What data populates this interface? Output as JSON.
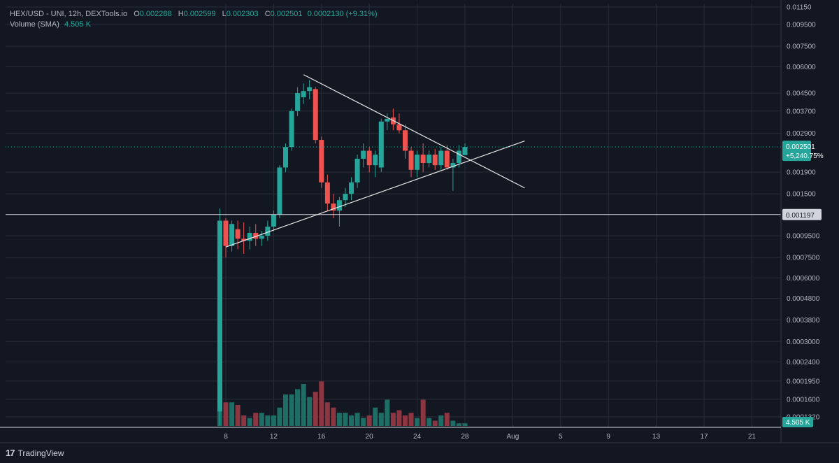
{
  "legend": {
    "symbol": "HEX/USD - UNI, 12h, DEXTools.io",
    "o_label": "O",
    "o": "0.002288",
    "h_label": "H",
    "h": "0.002599",
    "l_label": "L",
    "l": "0.002303",
    "c_label": "C",
    "c": "0.002501",
    "change": "0.0002130 (+9.31%)",
    "volume_label": "Volume (SMA)",
    "volume_value": "4.505 K"
  },
  "branding": {
    "logo": "17",
    "name": "TradingView"
  },
  "colors": {
    "up": "#26a69a",
    "down": "#ef5350",
    "up_vol": "#1f6e66",
    "down_vol": "#8c3642",
    "bg": "#131722",
    "grid": "#2a2e39"
  },
  "price_tags": {
    "last_price": "0.002501",
    "last_change": "+5,240.75%",
    "level": "0.001197",
    "volume": "4.505 K"
  },
  "chart_data": {
    "type": "candlestick",
    "scale": "log",
    "y_ticks": [
      "0.01150",
      "0.009500",
      "0.007500",
      "0.006000",
      "0.004500",
      "0.003700",
      "0.002900",
      "0.001900",
      "0.001500",
      "0.0009500",
      "0.0007500",
      "0.0006000",
      "0.0004800",
      "0.0003800",
      "0.0003000",
      "0.0002400",
      "0.0001950",
      "0.0001600",
      "0.0001320"
    ],
    "x_ticks": [
      "8",
      "12",
      "16",
      "20",
      "24",
      "28",
      "Aug",
      "5",
      "9",
      "13",
      "17",
      "21"
    ],
    "x_tick_days": [
      8,
      12,
      16,
      20,
      24,
      28,
      32,
      36,
      40,
      44,
      48,
      52
    ],
    "horizontal_level": 0.001197,
    "candles": [
      {
        "d": 7.5,
        "o": 0.00014,
        "h": 0.00128,
        "l": 0.00012,
        "c": 0.00112
      },
      {
        "d": 8.0,
        "o": 0.00112,
        "h": 0.00115,
        "l": 0.00075,
        "c": 0.00085
      },
      {
        "d": 8.5,
        "o": 0.00085,
        "h": 0.00112,
        "l": 0.0008,
        "c": 0.00108
      },
      {
        "d": 9.0,
        "o": 0.00102,
        "h": 0.00112,
        "l": 0.00082,
        "c": 0.00092
      },
      {
        "d": 9.5,
        "o": 0.00092,
        "h": 0.0011,
        "l": 0.00078,
        "c": 0.0009
      },
      {
        "d": 10.0,
        "o": 0.0009,
        "h": 0.00105,
        "l": 0.00082,
        "c": 0.00098
      },
      {
        "d": 10.5,
        "o": 0.00098,
        "h": 0.00108,
        "l": 0.00085,
        "c": 0.00092
      },
      {
        "d": 11.0,
        "o": 0.00092,
        "h": 0.001,
        "l": 0.00085,
        "c": 0.00095
      },
      {
        "d": 11.5,
        "o": 0.00095,
        "h": 0.00112,
        "l": 0.0009,
        "c": 0.00105
      },
      {
        "d": 12.0,
        "o": 0.00105,
        "h": 0.00125,
        "l": 0.001,
        "c": 0.0012
      },
      {
        "d": 12.5,
        "o": 0.0012,
        "h": 0.00205,
        "l": 0.00115,
        "c": 0.002
      },
      {
        "d": 13.0,
        "o": 0.002,
        "h": 0.0026,
        "l": 0.0019,
        "c": 0.0025
      },
      {
        "d": 13.5,
        "o": 0.0025,
        "h": 0.0038,
        "l": 0.0024,
        "c": 0.0037
      },
      {
        "d": 14.0,
        "o": 0.0037,
        "h": 0.0048,
        "l": 0.0035,
        "c": 0.0045
      },
      {
        "d": 14.5,
        "o": 0.0043,
        "h": 0.005,
        "l": 0.004,
        "c": 0.0046
      },
      {
        "d": 15.0,
        "o": 0.0046,
        "h": 0.0052,
        "l": 0.0042,
        "c": 0.0048
      },
      {
        "d": 15.5,
        "o": 0.0047,
        "h": 0.0048,
        "l": 0.0026,
        "c": 0.0027
      },
      {
        "d": 16.0,
        "o": 0.0027,
        "h": 0.0028,
        "l": 0.0016,
        "c": 0.0017
      },
      {
        "d": 16.5,
        "o": 0.0017,
        "h": 0.00185,
        "l": 0.00125,
        "c": 0.00135
      },
      {
        "d": 17.0,
        "o": 0.00135,
        "h": 0.0015,
        "l": 0.00115,
        "c": 0.00125
      },
      {
        "d": 17.5,
        "o": 0.00125,
        "h": 0.00145,
        "l": 0.00105,
        "c": 0.0014
      },
      {
        "d": 18.0,
        "o": 0.0014,
        "h": 0.0016,
        "l": 0.0013,
        "c": 0.0015
      },
      {
        "d": 18.5,
        "o": 0.0015,
        "h": 0.0018,
        "l": 0.0014,
        "c": 0.0017
      },
      {
        "d": 19.0,
        "o": 0.0017,
        "h": 0.0023,
        "l": 0.0016,
        "c": 0.0022
      },
      {
        "d": 19.5,
        "o": 0.0022,
        "h": 0.0026,
        "l": 0.002,
        "c": 0.0024
      },
      {
        "d": 20.0,
        "o": 0.0024,
        "h": 0.0025,
        "l": 0.0019,
        "c": 0.00205
      },
      {
        "d": 20.5,
        "o": 0.00205,
        "h": 0.0024,
        "l": 0.0018,
        "c": 0.0023
      },
      {
        "d": 21.0,
        "o": 0.002,
        "h": 0.0034,
        "l": 0.0019,
        "c": 0.0033
      },
      {
        "d": 21.5,
        "o": 0.0033,
        "h": 0.0036,
        "l": 0.003,
        "c": 0.0034
      },
      {
        "d": 22.0,
        "o": 0.00345,
        "h": 0.0038,
        "l": 0.003,
        "c": 0.0032
      },
      {
        "d": 22.5,
        "o": 0.0032,
        "h": 0.0036,
        "l": 0.0029,
        "c": 0.003
      },
      {
        "d": 23.0,
        "o": 0.003,
        "h": 0.0032,
        "l": 0.0022,
        "c": 0.0024
      },
      {
        "d": 23.5,
        "o": 0.0024,
        "h": 0.0025,
        "l": 0.0018,
        "c": 0.00195
      },
      {
        "d": 24.0,
        "o": 0.00195,
        "h": 0.0024,
        "l": 0.0018,
        "c": 0.0023
      },
      {
        "d": 24.5,
        "o": 0.0023,
        "h": 0.0026,
        "l": 0.0019,
        "c": 0.0021
      },
      {
        "d": 25.0,
        "o": 0.0021,
        "h": 0.0024,
        "l": 0.002,
        "c": 0.0023
      },
      {
        "d": 25.5,
        "o": 0.0023,
        "h": 0.00245,
        "l": 0.00195,
        "c": 0.00205
      },
      {
        "d": 26.0,
        "o": 0.00205,
        "h": 0.0025,
        "l": 0.00195,
        "c": 0.0024
      },
      {
        "d": 26.5,
        "o": 0.0024,
        "h": 0.00255,
        "l": 0.00195,
        "c": 0.002
      },
      {
        "d": 27.0,
        "o": 0.002,
        "h": 0.0022,
        "l": 0.00155,
        "c": 0.0021
      },
      {
        "d": 27.5,
        "o": 0.0021,
        "h": 0.00255,
        "l": 0.002,
        "c": 0.0024
      },
      {
        "d": 28.0,
        "o": 0.002288,
        "h": 0.002599,
        "l": 0.002303,
        "c": 0.002501
      }
    ],
    "volumes": [
      0.95,
      0.45,
      0.45,
      0.4,
      0.2,
      0.15,
      0.25,
      0.25,
      0.2,
      0.2,
      0.35,
      0.6,
      0.6,
      0.7,
      0.8,
      0.55,
      0.65,
      0.85,
      0.45,
      0.35,
      0.25,
      0.25,
      0.2,
      0.25,
      0.15,
      0.2,
      0.35,
      0.25,
      0.5,
      0.25,
      0.3,
      0.2,
      0.25,
      0.15,
      0.5,
      0.15,
      0.1,
      0.2,
      0.25,
      0.1,
      0.05,
      0.05
    ],
    "trendlines": [
      {
        "name": "upper",
        "from": {
          "d": 14.5,
          "p": 0.0055
        },
        "to": {
          "d": 33.0,
          "p": 0.0016
        }
      },
      {
        "name": "lower",
        "from": {
          "d": 8.0,
          "p": 0.00084
        },
        "to": {
          "d": 33.0,
          "p": 0.00267
        }
      }
    ]
  }
}
